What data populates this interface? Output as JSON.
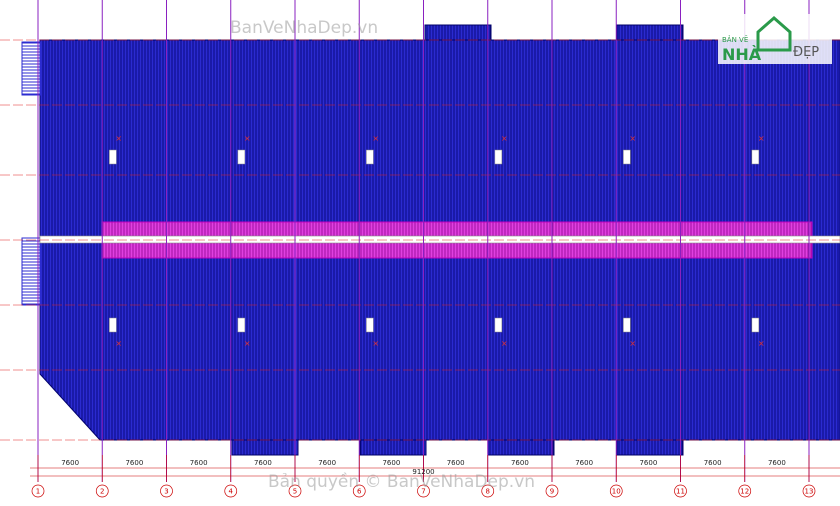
{
  "watermark": {
    "top": "BanVeNhaDep.vn",
    "bottom": "Bản quyền © BanVeNhaDep.vn"
  },
  "logo": {
    "line1": "BẢN VẼ",
    "line2": "NHÀ",
    "line3": "ĐẸP"
  },
  "plan": {
    "dimensions": [
      "7600",
      "7600",
      "7600",
      "7600",
      "7600",
      "7600",
      "7600",
      "7600",
      "7600",
      "7600",
      "7600",
      "7600"
    ],
    "total_dimension": "91200",
    "grid_labels": [
      "1",
      "2",
      "3",
      "4",
      "5",
      "6",
      "7",
      "8",
      "9",
      "10",
      "11",
      "12",
      "13"
    ]
  }
}
